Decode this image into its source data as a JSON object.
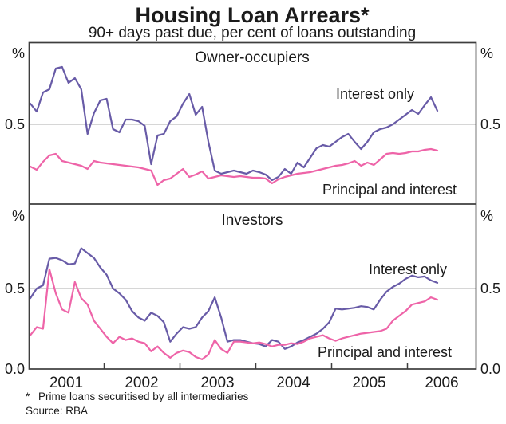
{
  "header": {
    "title": "Housing Loan Arrears*",
    "subtitle": "90+ days past due, per cent of loans outstanding"
  },
  "axis": {
    "percent": "%",
    "half": "0.5",
    "zero": "0.0",
    "years": [
      "2001",
      "2002",
      "2003",
      "2004",
      "2005",
      "2006"
    ]
  },
  "footer": {
    "footnote_marker": "*",
    "footnote_text": "Prime loans securitised by all intermediaries",
    "source": "Source: RBA"
  },
  "colors": {
    "interest_only": "#685ba7",
    "principal_and_interest": "#ee64a8",
    "gridline": "#bdbdbd",
    "frame": "#3e3e3e",
    "text": "#1b1b1b"
  },
  "chart_data": [
    {
      "type": "line",
      "panel": "Owner-occupiers",
      "unit": "per cent",
      "x_range": [
        "Jan 2001",
        "May 2006"
      ],
      "x_frequency": "monthly",
      "ylim": [
        0,
        1.0
      ],
      "yticks_shown": [
        0.5
      ],
      "grid": "horizontal at 0.5",
      "series": [
        {
          "name": "Interest only",
          "values": [
            0.63,
            0.58,
            0.7,
            0.72,
            0.85,
            0.86,
            0.76,
            0.79,
            0.72,
            0.44,
            0.57,
            0.65,
            0.66,
            0.47,
            0.45,
            0.53,
            0.53,
            0.52,
            0.49,
            0.25,
            0.43,
            0.44,
            0.52,
            0.55,
            0.63,
            0.69,
            0.56,
            0.61,
            0.39,
            0.21,
            0.19,
            0.2,
            0.21,
            0.2,
            0.19,
            0.21,
            0.2,
            0.185,
            0.15,
            0.17,
            0.22,
            0.19,
            0.26,
            0.23,
            0.29,
            0.35,
            0.37,
            0.36,
            0.39,
            0.42,
            0.44,
            0.39,
            0.345,
            0.39,
            0.45,
            0.47,
            0.48,
            0.5,
            0.53,
            0.56,
            0.59,
            0.565,
            0.62,
            0.67,
            0.585
          ]
        },
        {
          "name": "Principal and interest",
          "values": [
            0.235,
            0.215,
            0.265,
            0.305,
            0.315,
            0.27,
            0.26,
            0.25,
            0.24,
            0.22,
            0.27,
            0.26,
            0.255,
            0.25,
            0.245,
            0.24,
            0.235,
            0.23,
            0.22,
            0.21,
            0.12,
            0.15,
            0.16,
            0.19,
            0.22,
            0.17,
            0.185,
            0.205,
            0.16,
            0.17,
            0.18,
            0.175,
            0.17,
            0.175,
            0.17,
            0.165,
            0.165,
            0.16,
            0.13,
            0.155,
            0.17,
            0.18,
            0.19,
            0.195,
            0.2,
            0.21,
            0.22,
            0.23,
            0.24,
            0.245,
            0.255,
            0.27,
            0.24,
            0.26,
            0.245,
            0.28,
            0.315,
            0.32,
            0.315,
            0.32,
            0.33,
            0.33,
            0.34,
            0.345,
            0.335
          ]
        }
      ]
    },
    {
      "type": "line",
      "panel": "Investors",
      "unit": "per cent",
      "x_range": [
        "Jan 2001",
        "May 2006"
      ],
      "x_frequency": "monthly",
      "ylim": [
        0,
        1.0
      ],
      "yticks_shown": [
        0.0,
        0.5
      ],
      "grid": "horizontal at 0.5",
      "series": [
        {
          "name": "Interest only",
          "values": [
            0.44,
            0.5,
            0.52,
            0.685,
            0.69,
            0.675,
            0.65,
            0.655,
            0.75,
            0.72,
            0.69,
            0.63,
            0.585,
            0.5,
            0.47,
            0.43,
            0.36,
            0.32,
            0.3,
            0.35,
            0.33,
            0.29,
            0.17,
            0.22,
            0.26,
            0.25,
            0.26,
            0.32,
            0.36,
            0.445,
            0.32,
            0.17,
            0.18,
            0.18,
            0.17,
            0.16,
            0.155,
            0.14,
            0.18,
            0.17,
            0.125,
            0.14,
            0.165,
            0.18,
            0.2,
            0.22,
            0.25,
            0.29,
            0.375,
            0.37,
            0.375,
            0.38,
            0.39,
            0.385,
            0.37,
            0.43,
            0.48,
            0.51,
            0.53,
            0.56,
            0.58,
            0.57,
            0.575,
            0.55,
            0.535
          ]
        },
        {
          "name": "Principal and interest",
          "values": [
            0.21,
            0.26,
            0.25,
            0.62,
            0.47,
            0.37,
            0.35,
            0.54,
            0.44,
            0.4,
            0.3,
            0.25,
            0.2,
            0.16,
            0.2,
            0.18,
            0.19,
            0.17,
            0.16,
            0.11,
            0.14,
            0.1,
            0.07,
            0.1,
            0.115,
            0.105,
            0.075,
            0.06,
            0.09,
            0.18,
            0.125,
            0.1,
            0.17,
            0.17,
            0.165,
            0.16,
            0.165,
            0.155,
            0.14,
            0.15,
            0.15,
            0.16,
            0.155,
            0.17,
            0.19,
            0.2,
            0.21,
            0.19,
            0.175,
            0.19,
            0.2,
            0.21,
            0.22,
            0.225,
            0.23,
            0.235,
            0.25,
            0.3,
            0.33,
            0.36,
            0.4,
            0.41,
            0.42,
            0.445,
            0.43
          ]
        }
      ]
    }
  ]
}
